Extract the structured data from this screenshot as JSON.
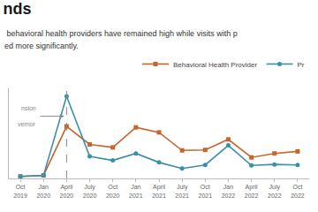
{
  "chart_data": {
    "type": "line",
    "title": "nds",
    "subtitle": [
      " behavioral health providers have remained high while visits with p",
      "ed more significantly."
    ],
    "categories": [
      "Oct\n2019",
      "Jan\n2020",
      "April\n2020",
      "July\n2020",
      "Oct\n2020",
      "Jan\n2021",
      "April\n2021",
      "July\n2021",
      "Oct\n2021",
      "Jan\n2022",
      "April\n2022",
      "July\n2022",
      "Oct\n2022"
    ],
    "series": [
      {
        "name": "Behavioral Health Provider",
        "color": "#c8652b",
        "marker": "square",
        "values": [
          2.0,
          3.0,
          52.0,
          34.0,
          31.0,
          51.0,
          46.0,
          28.0,
          28.5,
          39.0,
          21.0,
          25.0,
          27.0
        ]
      },
      {
        "name": "Pr",
        "color": "#3a8fad",
        "marker": "circle",
        "values": [
          2.0,
          3.0,
          82.0,
          22.0,
          18.0,
          25.0,
          16.0,
          10.0,
          13.5,
          33.0,
          13.0,
          14.0,
          13.5
        ]
      }
    ],
    "reference_line": {
      "x": "April\n2020",
      "line_style": "dashed"
    },
    "annotations": [
      "nsion",
      "vernor"
    ],
    "ylim": [
      0,
      90
    ],
    "tick_labels": "x",
    "grid": false,
    "legend": "upper right"
  }
}
